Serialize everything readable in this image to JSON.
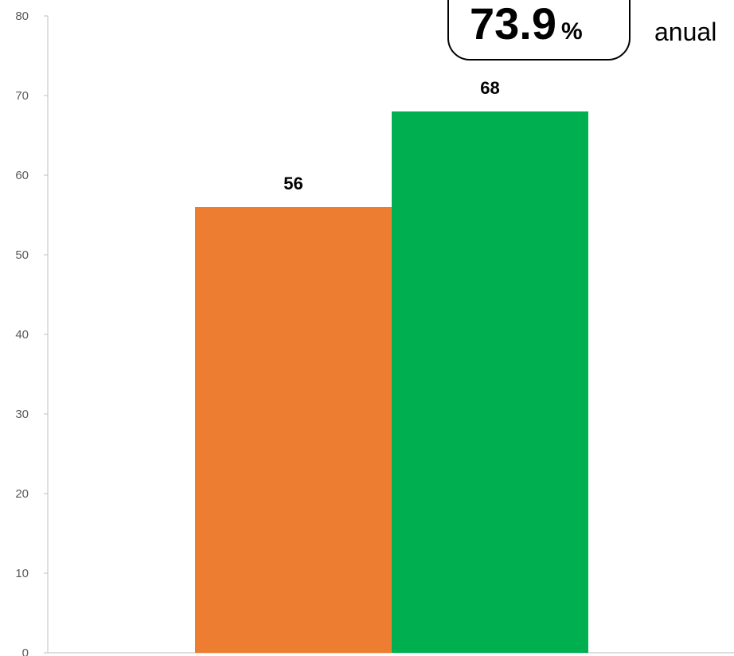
{
  "chart_data": {
    "type": "bar",
    "categories": [
      "",
      ""
    ],
    "values": [
      56,
      68
    ],
    "colors": [
      "#ED7D31",
      "#00B050"
    ],
    "data_labels": [
      "56",
      "68"
    ],
    "ylim": [
      0,
      80
    ],
    "yticks": [
      0,
      10,
      20,
      30,
      40,
      50,
      60,
      70,
      80
    ],
    "grid": false,
    "legend": "none"
  },
  "callout": {
    "value": "73.9",
    "unit": "%",
    "text": "anual"
  }
}
